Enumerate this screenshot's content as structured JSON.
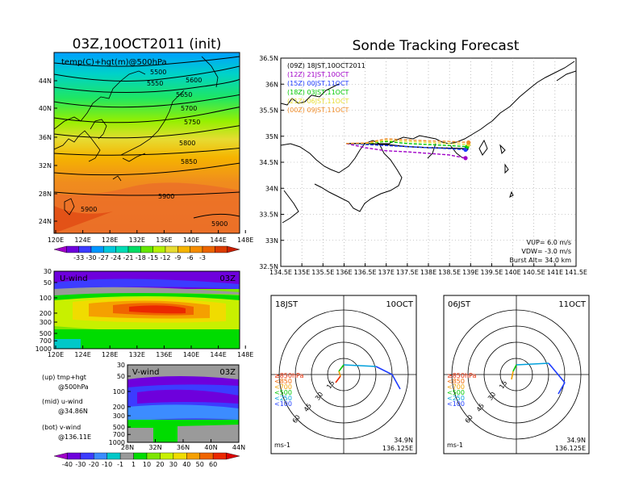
{
  "colors": {
    "temp_scale": [
      "#9f00c8",
      "#6e00dc",
      "#3c3cff",
      "#0096ff",
      "#00c8dc",
      "#00dcb4",
      "#00dc64",
      "#64e600",
      "#b4f000",
      "#e6dc32",
      "#f5b400",
      "#f58c00",
      "#eb6400",
      "#dc3c00",
      "#c81e00"
    ],
    "wind_scale": [
      "#9f00c8",
      "#6e00dc",
      "#3c3cff",
      "#3c8cff",
      "#00c8c8",
      "#9a9a9a",
      "#00dc00",
      "#7ee600",
      "#c8f000",
      "#f0dc00",
      "#f5a000",
      "#f06400",
      "#eb2800",
      "#dc0000"
    ],
    "track": {
      "09Z": "#000000",
      "12Z": "#a000c8",
      "15Z": "#1e3cff",
      "18Z": "#00c800",
      "21Z": "#e6dc32",
      "00Z": "#f08c28"
    }
  },
  "left": {
    "title": "03Z,10OCT2011 (init)",
    "map": {
      "label": "temp(C)+hgt(m)@500hPa",
      "lat_ticks": [
        "44N",
        "40N",
        "36N",
        "32N",
        "28N",
        "24N"
      ],
      "lon_ticks": [
        "120E",
        "124E",
        "128E",
        "132E",
        "136E",
        "140E",
        "144E",
        "148E"
      ],
      "contours": [
        "5500",
        "5550",
        "5600",
        "5650",
        "5700",
        "5750",
        "5800",
        "5850",
        "5900",
        "5900",
        "5900"
      ]
    },
    "temp_colorbar": [
      "-33",
      "-30",
      "-27",
      "-24",
      "-21",
      "-18",
      "-15",
      "-12",
      "-9",
      "-6",
      "-3"
    ],
    "uwind": {
      "label": "U-wind",
      "time": "03Z",
      "p_ticks": [
        "30",
        "50",
        "100",
        "200",
        "300",
        "500",
        "700",
        "1000"
      ],
      "lon_ticks": [
        "120E",
        "124E",
        "128E",
        "132E",
        "136E",
        "140E",
        "144E",
        "148E"
      ]
    },
    "vwind": {
      "label": "V-wind",
      "time": "03Z",
      "p_ticks": [
        "30",
        "50",
        "100",
        "200",
        "300",
        "500",
        "700",
        "1000"
      ],
      "lat_ticks": [
        "28N",
        "32N",
        "36N",
        "40N",
        "44N"
      ]
    },
    "legend": [
      {
        "line1": "(up) tmp+hgt",
        "line2": "@500hPa"
      },
      {
        "line1": "(mid) u-wind",
        "line2": "@34.86N"
      },
      {
        "line1": "(bot) v-wind",
        "line2": "@136.11E"
      }
    ],
    "wind_colorbar": [
      "-40",
      "-30",
      "-20",
      "-10",
      "-1",
      "1",
      "10",
      "20",
      "30",
      "40",
      "50",
      "60"
    ]
  },
  "right": {
    "title": "Sonde Tracking Forecast",
    "lat_ticks": [
      "36.5N",
      "36N",
      "35.5N",
      "35N",
      "34.5N",
      "34N",
      "33.5N",
      "33N",
      "32.5N"
    ],
    "lon_ticks": [
      "134.5E",
      "135E",
      "135.5E",
      "136E",
      "136.5E",
      "137E",
      "137.5E",
      "138E",
      "138.5E",
      "139E",
      "139.5E",
      "140E",
      "140.5E",
      "141E",
      "141.5E"
    ],
    "legend": [
      {
        "key": "09Z",
        "text": "(09Z)  18JST,10OCT2011"
      },
      {
        "key": "12Z",
        "text": "(12Z)  21JST,10OCT"
      },
      {
        "key": "15Z",
        "text": "(15Z)  00JST,11OCT"
      },
      {
        "key": "18Z",
        "text": "(18Z)  03JST,11OCT"
      },
      {
        "key": "21Z",
        "text": "(21Z)  06JST,11OCT"
      },
      {
        "key": "00Z",
        "text": "(00Z)  09JST,11OCT"
      }
    ],
    "params": [
      "VUP=  6.0  m/s",
      "VDW= -3.0  m/s",
      "Burst Alt=  34.0  km"
    ]
  },
  "hodographs": [
    {
      "time": "18JST",
      "date": "10OCT",
      "lat": "34.9N",
      "lon": "136.125E",
      "unit": "ms-1",
      "rings": [
        "15",
        "30",
        "45",
        "60"
      ],
      "levels": [
        "≥850hPa",
        "<850",
        "<700",
        "<500",
        "<250",
        "<100"
      ]
    },
    {
      "time": "06JST",
      "date": "11OCT",
      "lat": "34.9N",
      "lon": "136.125E",
      "unit": "ms-1",
      "rings": [
        "15",
        "30",
        "45",
        "60"
      ],
      "levels": [
        "≥850hPa",
        "<850",
        "<700",
        "<500",
        "<250",
        "<100"
      ]
    }
  ],
  "chart_data": [
    {
      "type": "heatmap",
      "title": "03Z,10OCT2011 (init)",
      "xlim": [
        120,
        150
      ],
      "ylim": [
        22,
        48
      ],
      "series": [
        {
          "name": "temp(C)+hgt(m)@500hPa",
          "values": []
        }
      ]
    },
    {
      "type": "heatmap",
      "xlim": [
        120,
        150
      ],
      "ylim": [
        1000,
        30
      ],
      "series": [
        {
          "name": "U-wind",
          "values": []
        }
      ]
    },
    {
      "type": "heatmap",
      "xlim": [
        28,
        44
      ],
      "ylim": [
        1000,
        30
      ],
      "series": [
        {
          "name": "V-wind",
          "values": []
        }
      ]
    },
    {
      "type": "line",
      "title": "Sonde Tracking Forecast",
      "xlim": [
        134.5,
        141.5
      ],
      "ylim": [
        32.5,
        36.5
      ],
      "series": [
        {
          "name": "(09Z)  18JST,10OCT2011",
          "x": [
            136.05,
            136.5,
            137.0,
            137.5,
            138.0,
            138.5,
            138.9
          ],
          "y": [
            34.86,
            34.86,
            34.84,
            34.8,
            34.78,
            34.77,
            34.76
          ]
        },
        {
          "name": "(12Z)  21JST,10OCT",
          "x": [
            136.05,
            136.5,
            137.0,
            137.5,
            138.0,
            138.5,
            138.88
          ],
          "y": [
            34.86,
            34.78,
            34.72,
            34.7,
            34.67,
            34.64,
            34.58
          ]
        },
        {
          "name": "(15Z)  00JST,11OCT",
          "x": [
            136.05,
            136.5,
            137.0,
            137.5,
            138.0,
            138.5,
            138.88
          ],
          "y": [
            34.86,
            34.84,
            34.82,
            34.8,
            34.78,
            34.76,
            34.74
          ]
        },
        {
          "name": "(18Z)  03JST,11OCT",
          "x": [
            136.05,
            136.5,
            137.0,
            137.5,
            138.0,
            138.5,
            138.92
          ],
          "y": [
            34.86,
            34.86,
            34.9,
            34.86,
            34.84,
            34.82,
            34.8
          ]
        },
        {
          "name": "(21Z)  06JST,11OCT",
          "x": [
            136.05,
            136.5,
            137.0,
            137.5,
            138.0,
            138.5,
            138.95
          ],
          "y": [
            34.86,
            34.86,
            34.92,
            34.9,
            34.88,
            34.86,
            34.84
          ]
        },
        {
          "name": "(00Z)  09JST,11OCT",
          "x": [
            136.05,
            136.5,
            137.0,
            137.5,
            138.0,
            138.5,
            138.95
          ],
          "y": [
            34.86,
            34.87,
            34.95,
            34.93,
            34.91,
            34.9,
            34.88
          ]
        }
      ]
    }
  ]
}
